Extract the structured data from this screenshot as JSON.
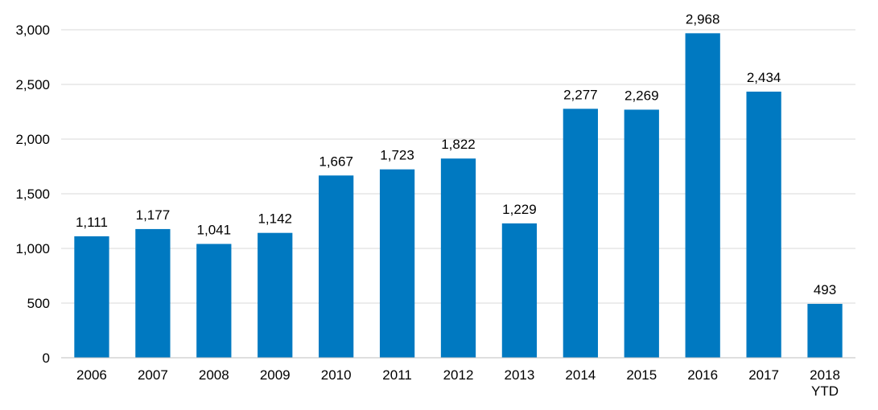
{
  "chart_data": {
    "type": "bar",
    "categories": [
      [
        "2006"
      ],
      [
        "2007"
      ],
      [
        "2008"
      ],
      [
        "2009"
      ],
      [
        "2010"
      ],
      [
        "2011"
      ],
      [
        "2012"
      ],
      [
        "2013"
      ],
      [
        "2014"
      ],
      [
        "2015"
      ],
      [
        "2016"
      ],
      [
        "2017"
      ],
      [
        "2018",
        "YTD"
      ]
    ],
    "values": [
      1111,
      1177,
      1041,
      1142,
      1667,
      1723,
      1822,
      1229,
      2277,
      2269,
      2968,
      2434,
      493
    ],
    "value_labels": [
      "1,111",
      "1,177",
      "1,041",
      "1,142",
      "1,667",
      "1,723",
      "1,822",
      "1,229",
      "2,277",
      "2,269",
      "2,968",
      "2,434",
      "493"
    ],
    "yticks": [
      0,
      500,
      1000,
      1500,
      2000,
      2500,
      3000
    ],
    "ytick_labels": [
      "0",
      "500",
      "1,000",
      "1,500",
      "2,000",
      "2,500",
      "3,000"
    ],
    "ylim": [
      0,
      3000
    ],
    "grid": true,
    "legend": "none",
    "bar_color": "#0079C1"
  }
}
